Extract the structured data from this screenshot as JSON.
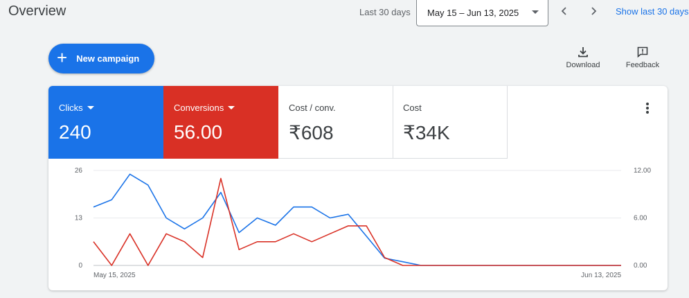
{
  "header": {
    "title": "Overview",
    "range_label": "Last 30 days",
    "date_range": "May 15 – Jun 13, 2025",
    "show_last": "Show last 30 days"
  },
  "toolbar": {
    "new_campaign": "New campaign",
    "download": "Download",
    "feedback": "Feedback"
  },
  "metrics": [
    {
      "label": "Clicks",
      "value": "240",
      "color": "#1a73e8"
    },
    {
      "label": "Conversions",
      "value": "56.00",
      "color": "#d93025"
    },
    {
      "label": "Cost / conv.",
      "value": "₹608"
    },
    {
      "label": "Cost",
      "value": "₹34K"
    }
  ],
  "chart_data": {
    "type": "line",
    "x_start_label": "May 15, 2025",
    "x_end_label": "Jun 13, 2025",
    "left_axis": {
      "ticks": [
        "0",
        "13",
        "26"
      ],
      "ylim": [
        0,
        26
      ]
    },
    "right_axis": {
      "ticks": [
        "0.00",
        "6.00",
        "12.00"
      ],
      "ylim": [
        0,
        12
      ]
    },
    "grid": true,
    "series": [
      {
        "name": "Clicks",
        "axis": "left",
        "color": "#1a73e8",
        "values": [
          16,
          18,
          25,
          22,
          13,
          10,
          13,
          20,
          9,
          13,
          11,
          16,
          16,
          13,
          14,
          8,
          2,
          1,
          0,
          0,
          0,
          0,
          0,
          0,
          0,
          0,
          0,
          0,
          0,
          0
        ]
      },
      {
        "name": "Conversions",
        "axis": "right",
        "color": "#d93025",
        "values": [
          3,
          0,
          4,
          0,
          4,
          3,
          1,
          11,
          2,
          3,
          3,
          4,
          3,
          4,
          5,
          5,
          1,
          0,
          0,
          0,
          0,
          0,
          0,
          0,
          0,
          0,
          0,
          0,
          0,
          0
        ]
      }
    ]
  }
}
